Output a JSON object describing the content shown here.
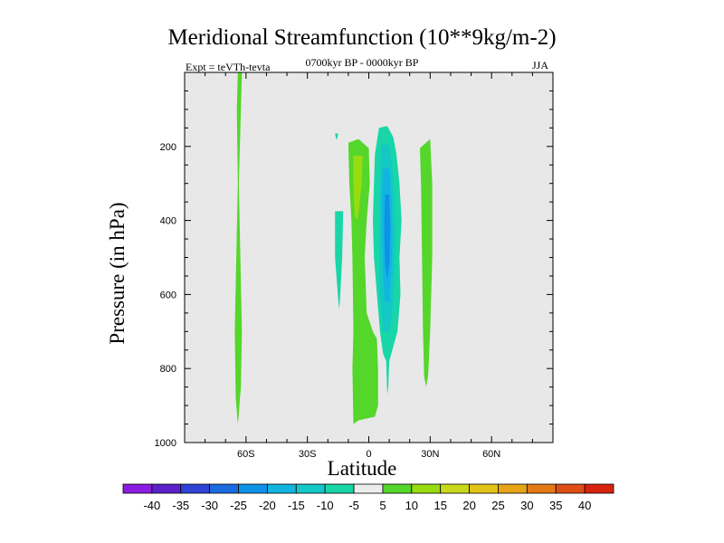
{
  "title": "Meridional Streamfunction (10**9kg/m-2)",
  "subtitle": "0700kyr BP - 0000kyr BP",
  "left_label": "Expt = teVTh-tevta",
  "right_label": "JJA",
  "chart_data": {
    "type": "contour",
    "xlabel": "Latitude",
    "ylabel": "Pressure (in hPa)",
    "xlim": [
      -90,
      90
    ],
    "ylim": [
      1000,
      0
    ],
    "x_ticks": [
      {
        "value": -60,
        "label": "60S"
      },
      {
        "value": -30,
        "label": "30S"
      },
      {
        "value": 0,
        "label": "0"
      },
      {
        "value": 30,
        "label": "30N"
      },
      {
        "value": 60,
        "label": "60N"
      }
    ],
    "y_ticks": [
      {
        "value": 200,
        "label": "200"
      },
      {
        "value": 400,
        "label": "400"
      },
      {
        "value": 600,
        "label": "600"
      },
      {
        "value": 800,
        "label": "800"
      },
      {
        "value": 1000,
        "label": "1000"
      }
    ],
    "background_color": "#e8e8e8",
    "colorbar": {
      "labels": [
        "-40",
        "-35",
        "-30",
        "-25",
        "-20",
        "-15",
        "-10",
        "-5",
        "5",
        "10",
        "15",
        "20",
        "25",
        "30",
        "35",
        "40"
      ],
      "colors": [
        "#8a1de0",
        "#5a22c8",
        "#2f44d6",
        "#1a6be0",
        "#0d92e8",
        "#12b4e0",
        "#14c8c6",
        "#18d6a8",
        "#ececec",
        "#55d62a",
        "#98dc10",
        "#c8d81a",
        "#e2c416",
        "#e6a416",
        "#e47a16",
        "#de4e12",
        "#d8220e"
      ]
    },
    "regions": [
      {
        "label": "5 to 10",
        "color": "#55d62a",
        "points": [
          [
            -64,
            0
          ],
          [
            -62,
            0
          ],
          [
            -62.5,
            100
          ],
          [
            -63.5,
            300
          ],
          [
            -62,
            700
          ],
          [
            -62.5,
            850
          ],
          [
            -63,
            880
          ],
          [
            -63.5,
            925
          ],
          [
            -64,
            950
          ],
          [
            -65,
            880
          ],
          [
            -65.5,
            700
          ],
          [
            -64,
            300
          ],
          [
            -64.5,
            100
          ]
        ]
      },
      {
        "label": "-5 to -10",
        "color": "#18d6a8",
        "points": [
          [
            -16.5,
            375
          ],
          [
            -12.5,
            375
          ],
          [
            -13,
            500
          ],
          [
            -14,
            610
          ],
          [
            -14.5,
            640
          ],
          [
            -15,
            610
          ],
          [
            -16.5,
            500
          ]
        ]
      },
      {
        "label": "-5 to -10",
        "color": "#18d6a8",
        "points": [
          [
            -16.5,
            165
          ],
          [
            -15,
            165
          ],
          [
            -15.5,
            180
          ],
          [
            -16,
            180
          ]
        ]
      },
      {
        "label": "5 to 10",
        "color": "#55d62a",
        "points": [
          [
            -10,
            190
          ],
          [
            -5,
            180
          ],
          [
            0,
            205
          ],
          [
            0.5,
            300
          ],
          [
            -1,
            400
          ],
          [
            -2,
            500
          ],
          [
            -1,
            650
          ],
          [
            2,
            700
          ],
          [
            4,
            720
          ],
          [
            4.5,
            800
          ],
          [
            4.5,
            900
          ],
          [
            3,
            930
          ],
          [
            -5,
            940
          ],
          [
            -7.5,
            950
          ],
          [
            -8,
            800
          ],
          [
            -7.5,
            700
          ],
          [
            -8,
            500
          ],
          [
            -8.5,
            400
          ],
          [
            -9.5,
            300
          ]
        ]
      },
      {
        "label": "10 to 15",
        "color": "#98dc10",
        "points": [
          [
            -7.5,
            225
          ],
          [
            -3,
            225
          ],
          [
            -3.5,
            300
          ],
          [
            -5,
            380
          ],
          [
            -6,
            400
          ],
          [
            -7,
            380
          ],
          [
            -7.5,
            300
          ]
        ]
      },
      {
        "label": "5 to 10",
        "color": "#55d62a",
        "points": [
          [
            25,
            205
          ],
          [
            30,
            180
          ],
          [
            31,
            300
          ],
          [
            31,
            500
          ],
          [
            30,
            700
          ],
          [
            29,
            820
          ],
          [
            28,
            850
          ],
          [
            27,
            820
          ],
          [
            26.5,
            700
          ],
          [
            26,
            500
          ],
          [
            25.5,
            300
          ]
        ]
      },
      {
        "label": "-5 to -10",
        "color": "#18d6a8",
        "points": [
          [
            5,
            150
          ],
          [
            9,
            145
          ],
          [
            12,
            175
          ],
          [
            13.5,
            220
          ],
          [
            15,
            300
          ],
          [
            16,
            400
          ],
          [
            15,
            500
          ],
          [
            15.5,
            600
          ],
          [
            14,
            700
          ],
          [
            11,
            760
          ],
          [
            10,
            780
          ],
          [
            9.5,
            850
          ],
          [
            9,
            870
          ],
          [
            8.5,
            780
          ],
          [
            7,
            760
          ],
          [
            5.5,
            700
          ],
          [
            4,
            600
          ],
          [
            2.5,
            500
          ],
          [
            2,
            400
          ],
          [
            2.5,
            300
          ],
          [
            3,
            220
          ]
        ]
      },
      {
        "label": "-10 to -15",
        "color": "#14c8c6",
        "points": [
          [
            6,
            195
          ],
          [
            10,
            195
          ],
          [
            11.5,
            260
          ],
          [
            12.5,
            340
          ],
          [
            13,
            450
          ],
          [
            12.5,
            550
          ],
          [
            11.5,
            650
          ],
          [
            10,
            700
          ],
          [
            7,
            700
          ],
          [
            5.5,
            600
          ],
          [
            5,
            450
          ],
          [
            5.5,
            300
          ]
        ]
      },
      {
        "label": "-15 to -20",
        "color": "#12b4e0",
        "points": [
          [
            7,
            260
          ],
          [
            10,
            260
          ],
          [
            11,
            330
          ],
          [
            11.5,
            430
          ],
          [
            11,
            550
          ],
          [
            10,
            620
          ],
          [
            8,
            620
          ],
          [
            7,
            550
          ],
          [
            6.5,
            430
          ],
          [
            6.5,
            330
          ]
        ]
      },
      {
        "label": "-20 to -25",
        "color": "#0d92e8",
        "points": [
          [
            8,
            330
          ],
          [
            10,
            330
          ],
          [
            10.5,
            420
          ],
          [
            10,
            520
          ],
          [
            9,
            560
          ],
          [
            8,
            520
          ],
          [
            7.5,
            420
          ]
        ]
      }
    ]
  }
}
